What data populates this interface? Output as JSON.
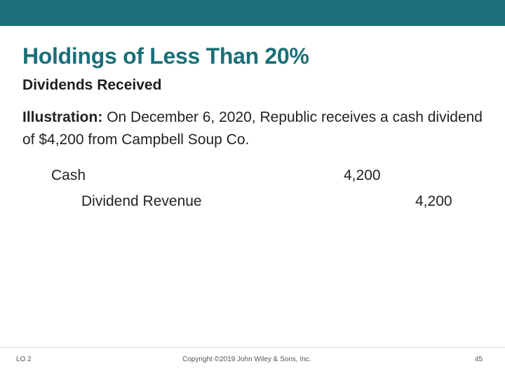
{
  "slide": {
    "title": "Holdings of Less Than 20%",
    "subtitle": "Dividends Received",
    "illustration_label": "Illustration:",
    "illustration_text": "On December 6, 2020, Republic receives a cash dividend of $4,200 from Campbell Soup Co."
  },
  "journal_entry": {
    "debit_account": "Cash",
    "debit_amount": "4,200",
    "credit_account": "Dividend Revenue",
    "credit_amount": "4,200"
  },
  "footer": {
    "learning_objective": "LO 2",
    "copyright": "Copyright ©2019 John Wiley & Sons, Inc.",
    "page_number": "45"
  },
  "colors": {
    "accent": "#1b6f78"
  }
}
